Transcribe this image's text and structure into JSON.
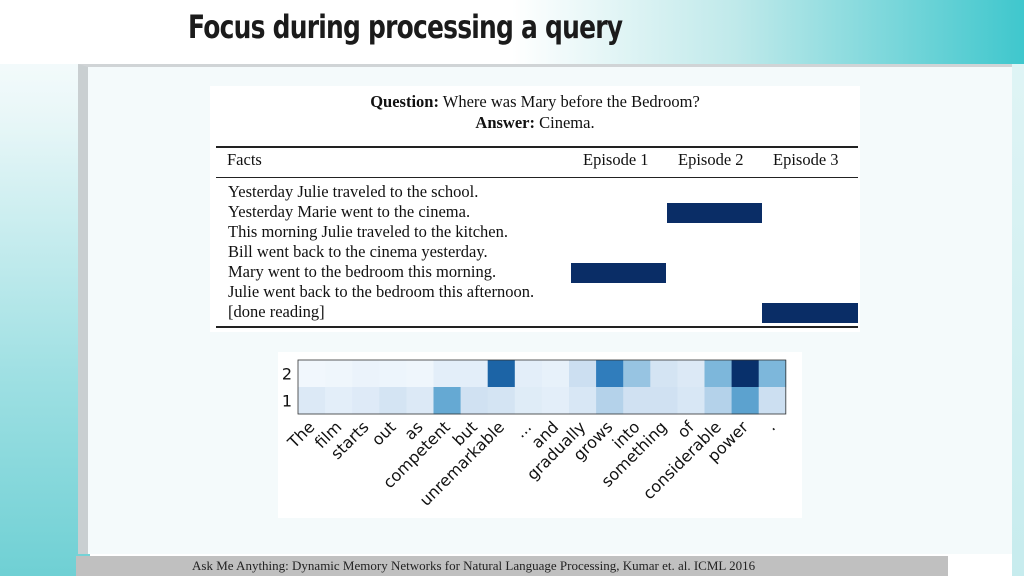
{
  "slide": {
    "title": "Focus during processing a query",
    "footer": "Ask Me Anything: Dynamic Memory Networks for Natural Language Processing, Kumar et. al. ICML 2016"
  },
  "qa_figure": {
    "question_label": "Question:",
    "question": "Where was Mary before the Bedroom?",
    "answer_label": "Answer:",
    "answer": "Cinema.",
    "headers": {
      "facts": "Facts",
      "episodes": [
        "Episode 1",
        "Episode 2",
        "Episode 3"
      ]
    },
    "facts": [
      "Yesterday Julie traveled to the school.",
      "Yesterday Marie went to the cinema.",
      "This morning Julie traveled to the kitchen.",
      "Bill went back to the cinema yesterday.",
      "Mary went to the bedroom this morning.",
      "Julie went back to the bedroom this afternoon.",
      "[done reading]"
    ],
    "attention": [
      {
        "fact_index": 4,
        "episode": 1
      },
      {
        "fact_index": 1,
        "episode": 2
      },
      {
        "fact_index": 6,
        "episode": 3
      }
    ],
    "color": "#0a2d66"
  },
  "chart_data": {
    "type": "heatmap",
    "rows": [
      "2",
      "1"
    ],
    "columns": [
      "The",
      "film",
      "starts",
      "out",
      "as",
      "competent",
      "but",
      "unremarkable",
      "...",
      "and",
      "gradually",
      "grows",
      "into",
      "something",
      "of",
      "considerable",
      "power",
      "."
    ],
    "values": [
      [
        0.03,
        0.04,
        0.06,
        0.05,
        0.04,
        0.1,
        0.1,
        0.8,
        0.1,
        0.08,
        0.22,
        0.7,
        0.38,
        0.18,
        0.14,
        0.45,
        1.0,
        0.45
      ],
      [
        0.14,
        0.1,
        0.13,
        0.18,
        0.14,
        0.52,
        0.2,
        0.18,
        0.12,
        0.1,
        0.16,
        0.3,
        0.2,
        0.2,
        0.16,
        0.3,
        0.55,
        0.22
      ]
    ],
    "colormap": "Blues"
  }
}
